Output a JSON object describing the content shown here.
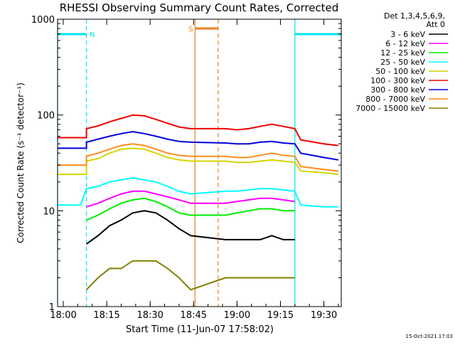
{
  "chart_data": {
    "type": "line",
    "title": "RHESSI Observing Summary Count Rates, Corrected",
    "xlabel": "Start Time (11-Jun-07 17:58:02)",
    "ylabel": "Corrected Count Rate (s⁻¹ detector⁻¹)",
    "yscale": "log",
    "ylim": [
      1,
      1000
    ],
    "xlim": [
      "17:58:02",
      "19:36:00"
    ],
    "x_ticks": [
      "18:00",
      "18:15",
      "18:30",
      "18:45",
      "19:00",
      "19:15",
      "19:30"
    ],
    "y_ticks": [
      "1",
      "10",
      "100",
      "1000"
    ],
    "legend_title": [
      "Det 1,3,4,5,6,9,",
      "Att 0"
    ],
    "legend_position": "right",
    "footer": "15-Oct-2021 17:03",
    "grid": false,
    "annotations": [
      {
        "label": "N",
        "kind": "night",
        "start": "17:58:02",
        "end": "18:08:00",
        "color": "#00e5ee"
      },
      {
        "label": "",
        "kind": "night",
        "start": "19:20:00",
        "end": "19:36:00",
        "color": "#00e5ee"
      },
      {
        "label": "S",
        "kind": "saa",
        "start": "18:45:30",
        "end": "18:53:30",
        "color": "#e8821e"
      }
    ],
    "series": [
      {
        "name": "3 - 6 keV",
        "color": "#000000",
        "x": [
          "18:08",
          "18:12",
          "18:16",
          "18:20",
          "18:24",
          "18:28",
          "18:32",
          "18:36",
          "18:40",
          "18:44",
          "18:56",
          "19:00",
          "19:04",
          "19:08",
          "19:12",
          "19:16",
          "19:20"
        ],
        "y": [
          4.5,
          5.5,
          7,
          8,
          9.5,
          10,
          9.5,
          8,
          6.5,
          5.5,
          5,
          5,
          5,
          5,
          5.5,
          5,
          5
        ]
      },
      {
        "name": "6 - 12 keV",
        "color": "#ff00ff",
        "x": [
          "17:58",
          "18:08",
          "18:08",
          "18:12",
          "18:16",
          "18:20",
          "18:24",
          "18:28",
          "18:32",
          "18:36",
          "18:40",
          "18:44",
          "18:56",
          "19:00",
          "19:04",
          "19:08",
          "19:12",
          "19:16",
          "19:20",
          "19:20",
          "19:30"
        ],
        "y": [
          null,
          null,
          11,
          12,
          13.5,
          15,
          16,
          16,
          15,
          14,
          13,
          12,
          12,
          12.5,
          13,
          13.5,
          13.5,
          13,
          12.5,
          null,
          null
        ]
      },
      {
        "name": "12 - 25 keV",
        "color": "#00ee00",
        "x": [
          "18:08",
          "18:12",
          "18:16",
          "18:20",
          "18:24",
          "18:28",
          "18:32",
          "18:36",
          "18:40",
          "18:44",
          "18:56",
          "19:00",
          "19:04",
          "19:08",
          "19:12",
          "19:16",
          "19:20"
        ],
        "y": [
          8,
          9,
          10.5,
          12,
          13,
          13.5,
          12.5,
          11,
          9.5,
          9,
          9,
          9.5,
          10,
          10.5,
          10.5,
          10,
          10
        ]
      },
      {
        "name": "25 - 50 keV",
        "color": "#00ffff",
        "x": [
          "17:58",
          "18:06",
          "18:08",
          "18:12",
          "18:16",
          "18:20",
          "18:24",
          "18:28",
          "18:32",
          "18:36",
          "18:40",
          "18:44",
          "18:56",
          "19:00",
          "19:04",
          "19:08",
          "19:12",
          "19:16",
          "19:20",
          "19:22",
          "19:30",
          "19:35"
        ],
        "y": [
          11.5,
          11.5,
          17,
          18,
          20,
          21,
          22,
          21,
          20,
          18,
          16,
          15,
          16,
          16,
          16.5,
          17,
          17,
          16.5,
          16,
          11.5,
          11,
          11
        ]
      },
      {
        "name": "50 - 100 keV",
        "color": "#d4d400",
        "x": [
          "17:58",
          "18:08",
          "18:08",
          "18:12",
          "18:16",
          "18:20",
          "18:24",
          "18:28",
          "18:32",
          "18:36",
          "18:40",
          "18:44",
          "18:56",
          "19:00",
          "19:04",
          "19:08",
          "19:12",
          "19:16",
          "19:20",
          "19:22",
          "19:30",
          "19:35"
        ],
        "y": [
          24,
          24,
          33,
          35,
          40,
          44,
          45,
          44,
          40,
          36,
          34,
          33,
          33,
          32,
          32,
          33,
          34,
          33,
          32,
          26,
          25,
          24
        ]
      },
      {
        "name": "100 - 300 keV",
        "color": "#ee0000",
        "x": [
          "17:58",
          "18:08",
          "18:08",
          "18:12",
          "18:16",
          "18:20",
          "18:24",
          "18:28",
          "18:32",
          "18:36",
          "18:40",
          "18:44",
          "18:56",
          "19:00",
          "19:04",
          "19:08",
          "19:12",
          "19:16",
          "19:20",
          "19:22",
          "19:30",
          "19:35"
        ],
        "y": [
          58,
          58,
          72,
          77,
          85,
          92,
          100,
          98,
          90,
          82,
          75,
          72,
          72,
          70,
          72,
          76,
          80,
          76,
          72,
          55,
          50,
          48
        ]
      },
      {
        "name": "300 - 800 keV",
        "color": "#0000dd",
        "x": [
          "17:58",
          "18:08",
          "18:08",
          "18:12",
          "18:16",
          "18:20",
          "18:24",
          "18:28",
          "18:32",
          "18:36",
          "18:40",
          "18:44",
          "18:56",
          "19:00",
          "19:04",
          "19:08",
          "19:12",
          "19:16",
          "19:20",
          "19:22",
          "19:30",
          "19:35"
        ],
        "y": [
          45,
          45,
          52,
          56,
          60,
          64,
          67,
          64,
          60,
          56,
          53,
          52,
          51,
          50,
          50,
          52,
          53,
          51,
          50,
          40,
          36,
          34
        ]
      },
      {
        "name": "800 - 7000 keV",
        "color": "#ff8c1a",
        "x": [
          "17:58",
          "18:08",
          "18:08",
          "18:12",
          "18:16",
          "18:20",
          "18:24",
          "18:28",
          "18:32",
          "18:36",
          "18:40",
          "18:44",
          "18:56",
          "19:00",
          "19:04",
          "19:08",
          "19:12",
          "19:16",
          "19:20",
          "19:22",
          "19:30",
          "19:35"
        ],
        "y": [
          30,
          30,
          37,
          40,
          44,
          48,
          50,
          48,
          44,
          40,
          38,
          37,
          37,
          36,
          36,
          38,
          40,
          38,
          37,
          29,
          27,
          26
        ]
      },
      {
        "name": "7000 - 15000 keV",
        "color": "#808000",
        "x": [
          "18:08",
          "18:12",
          "18:16",
          "18:20",
          "18:24",
          "18:28",
          "18:32",
          "18:36",
          "18:40",
          "18:44",
          "18:56",
          "19:00",
          "19:04",
          "19:08",
          "19:12",
          "19:16",
          "19:20"
        ],
        "y": [
          1.5,
          2,
          2.5,
          2.5,
          3,
          3,
          3,
          2.5,
          2,
          1.5,
          2,
          2,
          2,
          2,
          2,
          2,
          2
        ]
      }
    ]
  }
}
